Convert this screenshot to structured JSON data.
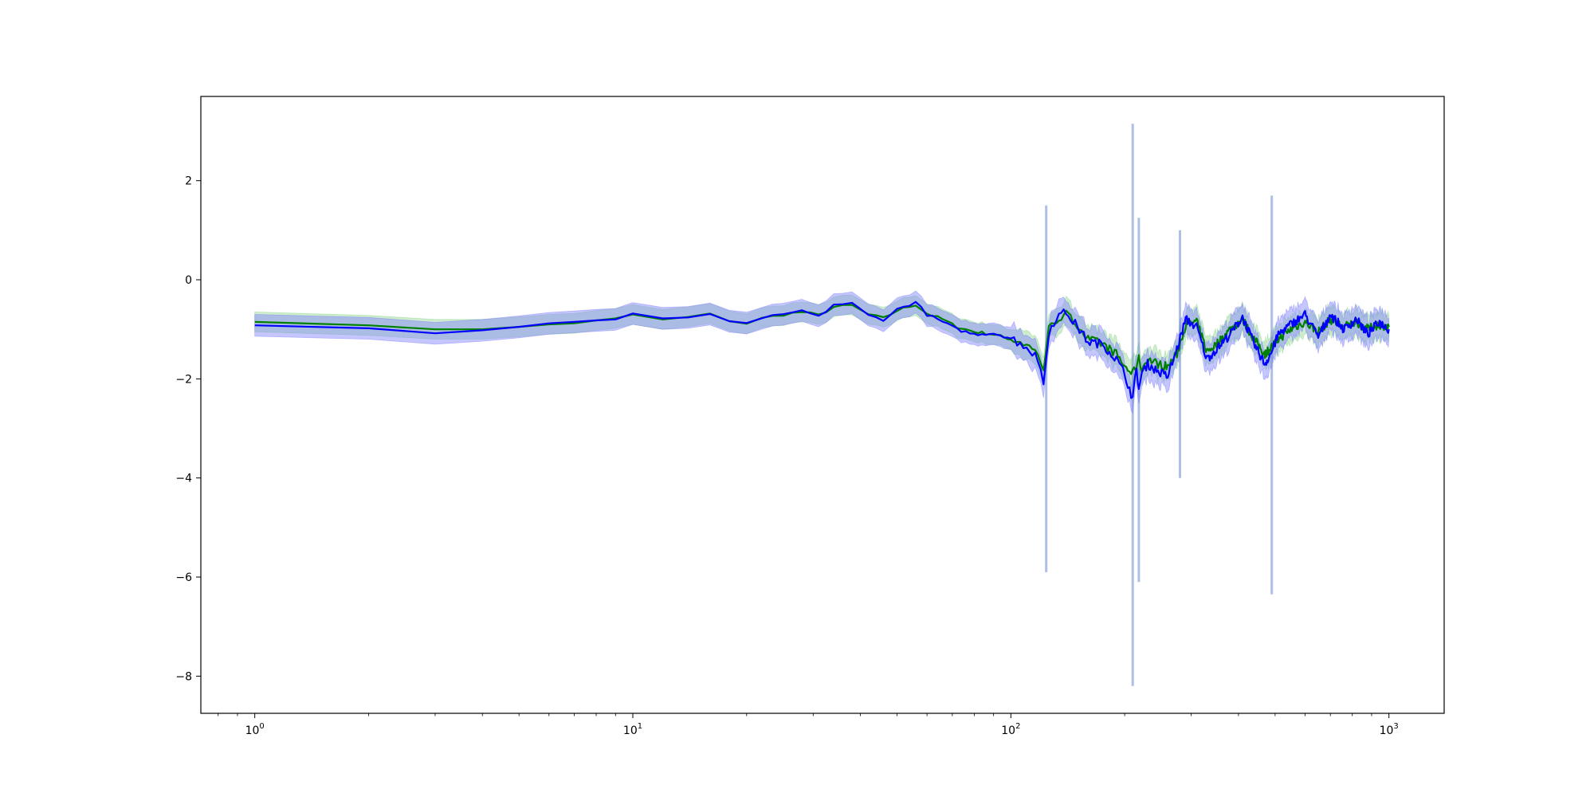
{
  "chart_data": {
    "type": "line",
    "title": "",
    "xlabel": "",
    "ylabel": "",
    "x_scale": "log",
    "xlim": [
      0.72,
      1400
    ],
    "ylim": [
      -8.75,
      3.7
    ],
    "grid": false,
    "legend": "none",
    "x_ticks": [
      {
        "value": 1,
        "label": "10^0"
      },
      {
        "value": 10,
        "label": "10^1"
      },
      {
        "value": 100,
        "label": "10^2"
      },
      {
        "value": 1000,
        "label": "10^3"
      }
    ],
    "y_ticks": [
      {
        "value": 2,
        "label": "2"
      },
      {
        "value": 0,
        "label": "0"
      },
      {
        "value": -2,
        "label": "-2"
      },
      {
        "value": -4,
        "label": "-4"
      },
      {
        "value": -6,
        "label": "-6"
      },
      {
        "value": -8,
        "label": "-8"
      }
    ],
    "series": [
      {
        "color": "#008000",
        "band_color": "#90d890",
        "x": [
          1,
          2,
          3,
          4,
          5,
          6,
          7,
          8,
          9,
          10,
          12,
          14,
          16,
          18,
          20,
          22,
          25,
          28,
          31,
          34,
          38,
          42,
          46,
          50,
          56,
          60,
          66,
          72,
          80,
          90,
          100,
          110,
          118,
          122,
          126,
          132,
          140,
          150,
          160,
          175,
          190,
          200,
          210,
          215,
          218,
          222,
          230,
          245,
          260,
          275,
          290,
          310,
          330,
          350,
          380,
          410,
          440,
          470,
          490,
          510,
          550,
          600,
          650,
          700,
          760,
          820,
          880,
          940,
          1000
        ],
        "y": [
          -0.85,
          -0.92,
          -1.0,
          -1.0,
          -0.95,
          -0.9,
          -0.88,
          -0.82,
          -0.78,
          -0.7,
          -0.8,
          -0.75,
          -0.7,
          -0.82,
          -0.88,
          -0.78,
          -0.7,
          -0.65,
          -0.72,
          -0.55,
          -0.52,
          -0.7,
          -0.78,
          -0.62,
          -0.5,
          -0.68,
          -0.8,
          -0.95,
          -1.05,
          -1.1,
          -1.2,
          -1.3,
          -1.5,
          -1.8,
          -1.0,
          -0.8,
          -0.7,
          -0.9,
          -1.2,
          -1.3,
          -1.5,
          -1.75,
          -1.9,
          -1.7,
          -1.6,
          -1.8,
          -1.6,
          -1.7,
          -1.75,
          -1.5,
          -0.9,
          -0.85,
          -1.45,
          -1.3,
          -1.0,
          -0.8,
          -1.2,
          -1.5,
          -1.35,
          -1.2,
          -1.0,
          -0.85,
          -1.05,
          -0.8,
          -0.95,
          -0.85,
          -1.0,
          -0.9,
          -0.95
        ],
        "band_halfwidth": 0.2
      },
      {
        "color": "#0000ff",
        "band_color": "#8080ff",
        "x": [
          1,
          2,
          3,
          4,
          5,
          6,
          7,
          8,
          9,
          10,
          12,
          14,
          16,
          18,
          20,
          22,
          25,
          28,
          31,
          34,
          38,
          42,
          46,
          50,
          56,
          60,
          66,
          72,
          80,
          90,
          100,
          110,
          118,
          122,
          126,
          132,
          140,
          150,
          160,
          175,
          190,
          200,
          210,
          215,
          218,
          222,
          230,
          245,
          260,
          275,
          290,
          310,
          330,
          350,
          380,
          410,
          440,
          470,
          490,
          510,
          550,
          600,
          650,
          700,
          760,
          820,
          880,
          940,
          1000
        ],
        "y": [
          -0.92,
          -0.98,
          -1.08,
          -1.02,
          -0.95,
          -0.88,
          -0.85,
          -0.82,
          -0.8,
          -0.68,
          -0.78,
          -0.76,
          -0.72,
          -0.85,
          -0.9,
          -0.76,
          -0.72,
          -0.62,
          -0.75,
          -0.5,
          -0.48,
          -0.72,
          -0.8,
          -0.6,
          -0.45,
          -0.7,
          -0.85,
          -1.0,
          -1.1,
          -1.08,
          -1.18,
          -1.35,
          -1.6,
          -2.1,
          -1.05,
          -0.75,
          -0.65,
          -0.95,
          -1.25,
          -1.3,
          -1.6,
          -1.9,
          -2.4,
          -1.8,
          -2.2,
          -1.9,
          -1.7,
          -1.85,
          -1.95,
          -1.4,
          -0.8,
          -0.95,
          -1.6,
          -1.4,
          -1.1,
          -0.75,
          -1.3,
          -1.7,
          -1.45,
          -1.1,
          -0.9,
          -0.7,
          -1.15,
          -0.7,
          -1.0,
          -0.8,
          -1.1,
          -0.85,
          -1.0
        ],
        "band_halfwidth": 0.22
      }
    ],
    "spikes": [
      {
        "x": 124,
        "ymin": -5.9,
        "ymax": 1.5
      },
      {
        "x": 210,
        "ymin": -8.2,
        "ymax": 3.15
      },
      {
        "x": 218,
        "ymin": -6.1,
        "ymax": 1.25
      },
      {
        "x": 280,
        "ymin": -4.0,
        "ymax": 1.0
      },
      {
        "x": 490,
        "ymin": -6.35,
        "ymax": 1.7
      }
    ]
  }
}
